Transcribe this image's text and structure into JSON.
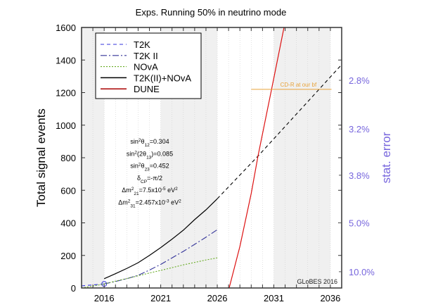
{
  "chart_data": {
    "type": "line",
    "title": "Exps. Running 50% in neutrino mode",
    "ylabel": "Total signal events",
    "y2label": "stat. error",
    "xlim": [
      2014,
      2037
    ],
    "ylim": [
      0,
      1600
    ],
    "grid": "vertical dotted, yearly",
    "shaded_year_bands": [
      [
        2014,
        2016
      ],
      [
        2021,
        2026
      ],
      [
        2031,
        2036
      ]
    ],
    "xticks": [
      2016,
      2021,
      2026,
      2031,
      2036
    ],
    "yticks": [
      0,
      200,
      400,
      600,
      800,
      1000,
      1200,
      1400,
      1600
    ],
    "y2ticks": [
      {
        "label": "2.8%",
        "error": 0.028
      },
      {
        "label": "3.2%",
        "error": 0.032
      },
      {
        "label": "3.8%",
        "error": 0.038
      },
      {
        "label": "5.0%",
        "error": 0.05
      },
      {
        "label": "10.0%",
        "error": 0.1
      }
    ],
    "legend_position": "top-left",
    "series": [
      {
        "name": "T2K",
        "color": "#3333dd",
        "style": "dashed",
        "x": [
          2014,
          2015,
          2016
        ],
        "y": [
          13,
          19,
          25
        ],
        "marker_at_end": "circle"
      },
      {
        "name": "T2K II",
        "color": "#333399",
        "style": "dashdot",
        "x": [
          2016,
          2017,
          2018,
          2019,
          2020,
          2021,
          2022,
          2023,
          2024,
          2025,
          2026
        ],
        "y": [
          25,
          40,
          57,
          78,
          110,
          145,
          185,
          225,
          268,
          312,
          358
        ]
      },
      {
        "name": "NOvA",
        "color": "#66aa22",
        "style": "dotted",
        "x": [
          2014,
          2015,
          2016,
          2017,
          2018,
          2019,
          2020,
          2021,
          2022,
          2023,
          2024,
          2025,
          2026
        ],
        "y": [
          0,
          12,
          25,
          42,
          58,
          75,
          92,
          108,
          125,
          142,
          157,
          172,
          185
        ]
      },
      {
        "name": "T2K(II)+NOvA",
        "color": "#000000",
        "style": "solid",
        "x": [
          2016,
          2017,
          2018,
          2019,
          2020,
          2021,
          2022,
          2023,
          2024,
          2025,
          2026
        ],
        "y": [
          57,
          88,
          120,
          155,
          200,
          248,
          300,
          355,
          420,
          480,
          548
        ],
        "extension": {
          "style": "dashed",
          "x": [
            2026,
            2029.6,
            2035,
            2037
          ],
          "y": [
            548,
            810,
            1220,
            1372
          ]
        }
      },
      {
        "name": "DUNE",
        "color": "#dd1111",
        "legend_color": "#aa0000",
        "style": "solid",
        "x": [
          2027.05,
          2028,
          2029,
          2029.6,
          2030.8,
          2031.9
        ],
        "y": [
          0,
          255,
          580,
          810,
          1220,
          1600
        ]
      }
    ],
    "reference_line": {
      "label": "CD-R at our bf",
      "y": 1220,
      "x": [
        2029,
        2036.1
      ],
      "color": "#e8a33a"
    },
    "annotations": {
      "params": [
        [
          [
            "sin",
            ""
          ],
          [
            "2",
            "sup"
          ],
          [
            "θ",
            ""
          ],
          [
            "12",
            "sub"
          ],
          [
            "=0.304",
            ""
          ]
        ],
        [
          [
            "sin",
            ""
          ],
          [
            "2",
            "sup"
          ],
          [
            "(2θ",
            ""
          ],
          [
            "13",
            "sub"
          ],
          [
            ")=0.085",
            ""
          ]
        ],
        [
          [
            "sin",
            ""
          ],
          [
            "2",
            "sup"
          ],
          [
            "θ",
            ""
          ],
          [
            "23",
            "sub"
          ],
          [
            "=0.452",
            ""
          ]
        ],
        [
          [
            "δ",
            ""
          ],
          [
            "CP",
            "sub"
          ],
          [
            "=-π/2",
            ""
          ]
        ],
        [
          [
            "Δm",
            ""
          ],
          [
            "2",
            "sup"
          ],
          [
            "21",
            "sub"
          ],
          [
            "=7.5x10",
            ""
          ],
          [
            "-5",
            "sup"
          ],
          [
            " eV",
            ""
          ],
          [
            "2",
            "sup"
          ]
        ],
        [
          [
            "Δm",
            ""
          ],
          [
            "2",
            "sup"
          ],
          [
            "31",
            "sub"
          ],
          [
            "=2.457x10",
            ""
          ],
          [
            "-3",
            "sup"
          ],
          [
            " eV",
            ""
          ],
          [
            "2",
            "sup"
          ]
        ]
      ],
      "credit": "GLoBES 2016"
    },
    "colors": {
      "axis_secondary": "#7766dd",
      "band": "#f0f0f0"
    }
  }
}
